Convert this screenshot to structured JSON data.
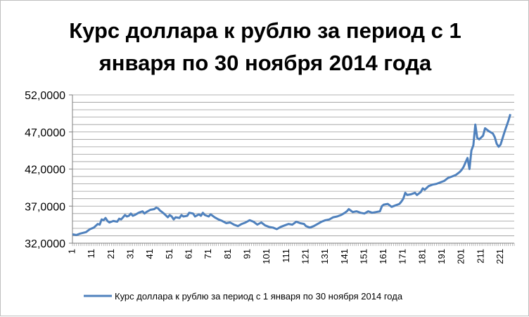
{
  "chart_data": {
    "type": "line",
    "title_lines": [
      "Курс доллара к рублю за период с 1",
      "января по 30 ноября 2014 года"
    ],
    "ylim": [
      32,
      52
    ],
    "yticks": [
      52,
      47,
      42,
      37,
      32
    ],
    "ytick_labels": [
      "52,0000",
      "47,0000",
      "42,0000",
      "37,0000",
      "32,0000"
    ],
    "x_range": [
      1,
      228
    ],
    "xtick_values": [
      1,
      11,
      21,
      31,
      41,
      51,
      61,
      71,
      81,
      91,
      101,
      111,
      121,
      131,
      141,
      151,
      161,
      171,
      181,
      191,
      201,
      211,
      221
    ],
    "xtick_labels": [
      "1",
      "11",
      "21",
      "31",
      "41",
      "51",
      "61",
      "71",
      "81",
      "91",
      "101",
      "111",
      "121",
      "131",
      "141",
      "151",
      "161",
      "171",
      "181",
      "191",
      "201",
      "211",
      "221"
    ],
    "grid": true,
    "legend_position": "bottom",
    "series": [
      {
        "name": "Курс доллара к рублю за период с 1 января по 30 ноября 2014 года",
        "color": "#4f81bd",
        "points": [
          [
            1,
            33.2
          ],
          [
            3,
            33.1
          ],
          [
            5,
            33.3
          ],
          [
            8,
            33.5
          ],
          [
            10,
            33.9
          ],
          [
            12,
            34.1
          ],
          [
            14,
            34.6
          ],
          [
            15,
            34.5
          ],
          [
            16,
            35.2
          ],
          [
            17,
            35.1
          ],
          [
            18,
            35.4
          ],
          [
            19,
            35.0
          ],
          [
            20,
            34.8
          ],
          [
            22,
            35.0
          ],
          [
            24,
            34.9
          ],
          [
            25,
            35.3
          ],
          [
            26,
            35.2
          ],
          [
            27,
            35.5
          ],
          [
            28,
            35.8
          ],
          [
            29,
            35.6
          ],
          [
            30,
            35.7
          ],
          [
            31,
            36.0
          ],
          [
            32,
            35.7
          ],
          [
            33,
            35.8
          ],
          [
            35,
            36.1
          ],
          [
            37,
            36.3
          ],
          [
            38,
            36.0
          ],
          [
            39,
            36.2
          ],
          [
            41,
            36.5
          ],
          [
            43,
            36.6
          ],
          [
            44,
            36.8
          ],
          [
            45,
            36.7
          ],
          [
            46,
            36.4
          ],
          [
            47,
            36.2
          ],
          [
            48,
            36.0
          ],
          [
            50,
            35.5
          ],
          [
            51,
            35.8
          ],
          [
            52,
            35.6
          ],
          [
            53,
            35.2
          ],
          [
            54,
            35.5
          ],
          [
            56,
            35.4
          ],
          [
            57,
            35.8
          ],
          [
            58,
            35.6
          ],
          [
            60,
            35.7
          ],
          [
            61,
            36.1
          ],
          [
            63,
            36.0
          ],
          [
            64,
            35.6
          ],
          [
            66,
            35.9
          ],
          [
            67,
            35.7
          ],
          [
            68,
            36.1
          ],
          [
            69,
            35.8
          ],
          [
            71,
            35.6
          ],
          [
            72,
            35.9
          ],
          [
            74,
            35.5
          ],
          [
            76,
            35.2
          ],
          [
            78,
            35.0
          ],
          [
            80,
            34.7
          ],
          [
            82,
            34.8
          ],
          [
            84,
            34.5
          ],
          [
            86,
            34.3
          ],
          [
            88,
            34.6
          ],
          [
            90,
            34.8
          ],
          [
            92,
            35.1
          ],
          [
            94,
            34.9
          ],
          [
            96,
            34.5
          ],
          [
            98,
            34.8
          ],
          [
            100,
            34.4
          ],
          [
            102,
            34.2
          ],
          [
            104,
            34.1
          ],
          [
            106,
            33.9
          ],
          [
            108,
            34.2
          ],
          [
            110,
            34.4
          ],
          [
            112,
            34.6
          ],
          [
            114,
            34.5
          ],
          [
            116,
            34.9
          ],
          [
            118,
            34.7
          ],
          [
            120,
            34.6
          ],
          [
            121,
            34.3
          ],
          [
            123,
            34.1
          ],
          [
            125,
            34.3
          ],
          [
            127,
            34.6
          ],
          [
            129,
            34.9
          ],
          [
            131,
            35.1
          ],
          [
            133,
            35.2
          ],
          [
            135,
            35.5
          ],
          [
            137,
            35.6
          ],
          [
            139,
            35.8
          ],
          [
            141,
            36.1
          ],
          [
            142,
            36.3
          ],
          [
            143,
            36.6
          ],
          [
            145,
            36.2
          ],
          [
            147,
            36.3
          ],
          [
            149,
            36.1
          ],
          [
            151,
            36.0
          ],
          [
            153,
            36.3
          ],
          [
            155,
            36.1
          ],
          [
            157,
            36.2
          ],
          [
            159,
            36.3
          ],
          [
            160,
            37.0
          ],
          [
            161,
            37.2
          ],
          [
            163,
            37.3
          ],
          [
            165,
            36.9
          ],
          [
            167,
            37.1
          ],
          [
            169,
            37.3
          ],
          [
            170,
            37.6
          ],
          [
            171,
            38.0
          ],
          [
            172,
            38.8
          ],
          [
            173,
            38.5
          ],
          [
            175,
            38.6
          ],
          [
            177,
            38.8
          ],
          [
            178,
            38.5
          ],
          [
            180,
            38.9
          ],
          [
            181,
            39.4
          ],
          [
            182,
            39.2
          ],
          [
            184,
            39.7
          ],
          [
            186,
            39.9
          ],
          [
            188,
            40.0
          ],
          [
            190,
            40.2
          ],
          [
            192,
            40.4
          ],
          [
            194,
            40.8
          ],
          [
            196,
            41.0
          ],
          [
            198,
            41.2
          ],
          [
            200,
            41.6
          ],
          [
            201,
            41.9
          ],
          [
            202,
            42.3
          ],
          [
            203,
            42.9
          ],
          [
            204,
            43.5
          ],
          [
            205,
            42.0
          ],
          [
            206,
            44.5
          ],
          [
            207,
            45.2
          ],
          [
            208,
            48.0
          ],
          [
            209,
            46.2
          ],
          [
            210,
            46.0
          ],
          [
            212,
            46.5
          ],
          [
            213,
            47.5
          ],
          [
            215,
            47.1
          ],
          [
            217,
            46.8
          ],
          [
            218,
            46.3
          ],
          [
            219,
            45.4
          ],
          [
            220,
            45.0
          ],
          [
            221,
            45.3
          ],
          [
            223,
            47.0
          ],
          [
            225,
            48.5
          ],
          [
            226,
            49.4
          ]
        ]
      }
    ]
  }
}
